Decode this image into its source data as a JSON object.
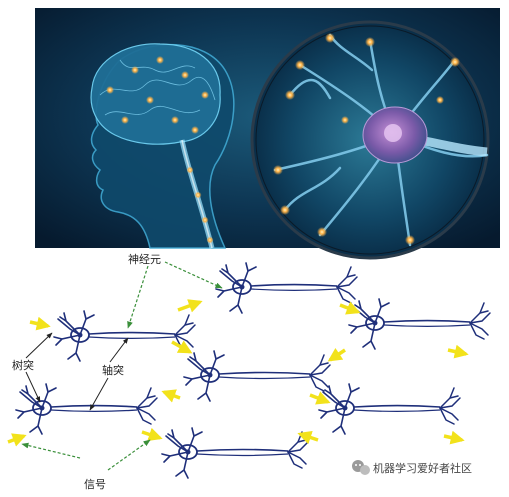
{
  "labels": {
    "neuron": "神经元",
    "dendrite": "树突",
    "axon": "轴突",
    "signal": "信号"
  },
  "watermark": "机器学习爱好者社区",
  "icons": {
    "watermark_logo": "wechat-icon"
  },
  "colors": {
    "top_bg": "#0b2a45",
    "neuron_stroke": "#1f2f7a",
    "signal_arrow": "#f2e21b",
    "pointer_arrow": "#3a8f3a",
    "glow": "#ffb347"
  }
}
